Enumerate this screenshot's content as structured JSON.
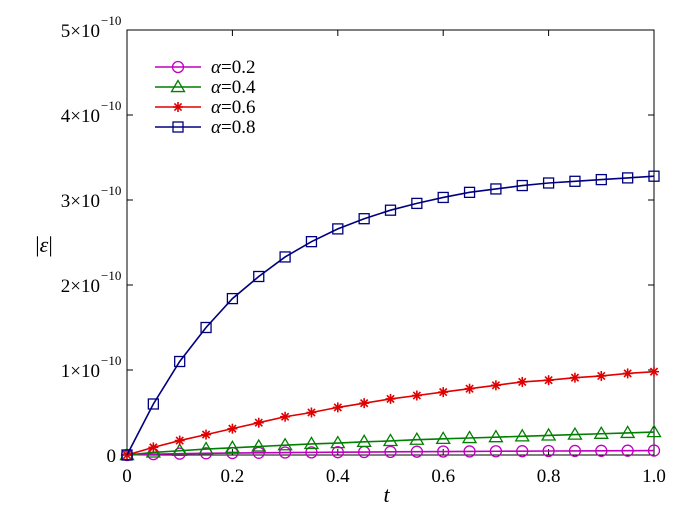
{
  "chart_data": {
    "type": "line",
    "xlabel": "t",
    "ylabel": "|ε|",
    "xlim": [
      0,
      1.0
    ],
    "ylim": [
      0,
      5e-10
    ],
    "xticks": [
      {
        "value": 0,
        "label": "0"
      },
      {
        "value": 0.2,
        "label": "0.2"
      },
      {
        "value": 0.4,
        "label": "0.4"
      },
      {
        "value": 0.6,
        "label": "0.6"
      },
      {
        "value": 0.8,
        "label": "0.8"
      },
      {
        "value": 1.0,
        "label": "1.0"
      }
    ],
    "yticks": [
      {
        "value": 0,
        "mantissa": "0",
        "exponent": ""
      },
      {
        "value": 1e-10,
        "mantissa": "1×10",
        "exponent": "−10"
      },
      {
        "value": 2e-10,
        "mantissa": "2×10",
        "exponent": "−10"
      },
      {
        "value": 3e-10,
        "mantissa": "3×10",
        "exponent": "−10"
      },
      {
        "value": 4e-10,
        "mantissa": "4×10",
        "exponent": "−10"
      },
      {
        "value": 5e-10,
        "mantissa": "5×10",
        "exponent": "−10"
      }
    ],
    "grid": false,
    "legend_position": "top-left",
    "x": [
      0,
      0.05,
      0.1,
      0.15,
      0.2,
      0.25,
      0.3,
      0.35,
      0.4,
      0.45,
      0.5,
      0.55,
      0.6,
      0.65,
      0.7,
      0.75,
      0.8,
      0.85,
      0.9,
      0.95,
      1.0
    ],
    "series": [
      {
        "name": "α = 0.2",
        "greek": "α",
        "value_text": "0.2",
        "color": "#bf00bf",
        "marker": "circle",
        "values": [
          0,
          1e-12,
          1.6e-12,
          2e-12,
          2.3e-12,
          2.6e-12,
          2.9e-12,
          3.1e-12,
          3.3e-12,
          3.5e-12,
          3.7e-12,
          3.9e-12,
          4.1e-12,
          4.2e-12,
          4.4e-12,
          4.5e-12,
          4.7e-12,
          4.8e-12,
          4.9e-12,
          5.1e-12,
          5.2e-12
        ]
      },
      {
        "name": "α = 0.4",
        "greek": "α",
        "value_text": "0.4",
        "color": "#007f00",
        "marker": "triangle",
        "values": [
          0,
          3e-12,
          5e-12,
          7e-12,
          8.5e-12,
          1e-11,
          1.15e-11,
          1.3e-11,
          1.4e-11,
          1.55e-11,
          1.65e-11,
          1.8e-11,
          1.9e-11,
          2e-11,
          2.1e-11,
          2.2e-11,
          2.3e-11,
          2.4e-11,
          2.5e-11,
          2.6e-11,
          2.7e-11
        ]
      },
      {
        "name": "α = 0.6",
        "greek": "α",
        "value_text": "0.6",
        "color": "#e00000",
        "marker": "star",
        "values": [
          0,
          9e-12,
          1.7e-11,
          2.4e-11,
          3.1e-11,
          3.8e-11,
          4.5e-11,
          5e-11,
          5.6e-11,
          6.1e-11,
          6.6e-11,
          7e-11,
          7.4e-11,
          7.8e-11,
          8.2e-11,
          8.6e-11,
          8.8e-11,
          9.1e-11,
          9.3e-11,
          9.6e-11,
          9.8e-11
        ]
      },
      {
        "name": "α = 0.8",
        "greek": "α",
        "value_text": "0.8",
        "color": "#00007f",
        "marker": "square",
        "values": [
          0,
          6e-11,
          1.1e-10,
          1.5e-10,
          1.84e-10,
          2.1e-10,
          2.33e-10,
          2.51e-10,
          2.66e-10,
          2.78e-10,
          2.88e-10,
          2.96e-10,
          3.03e-10,
          3.09e-10,
          3.13e-10,
          3.17e-10,
          3.2e-10,
          3.22e-10,
          3.24e-10,
          3.26e-10,
          3.28e-10
        ]
      }
    ]
  }
}
